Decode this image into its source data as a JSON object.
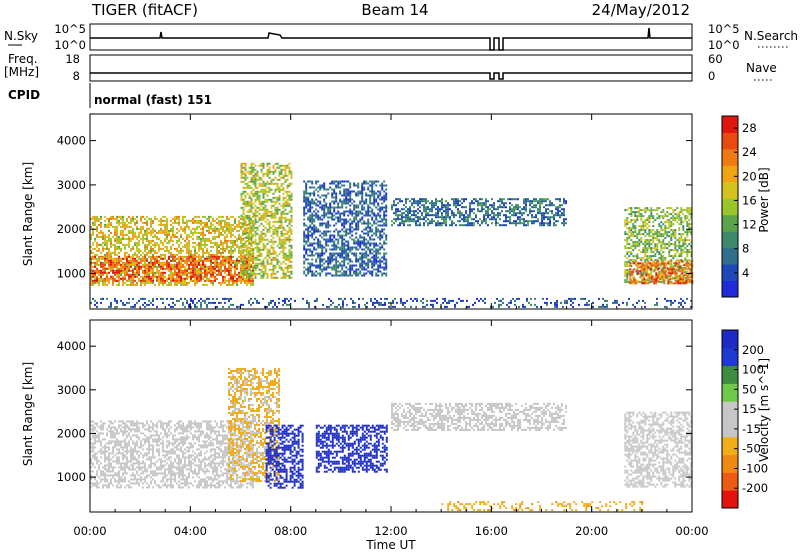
{
  "header": {
    "radar": "TIGER (fitACF)",
    "beam": "Beam 14",
    "date": "24/May/2012"
  },
  "top_panels": {
    "nsky_label": "N.Sky",
    "nsky_ticks": [
      "10^5",
      "10^0"
    ],
    "nsearch_label": "N.Search",
    "nsearch_ticks": [
      "10^5",
      "10^0"
    ],
    "freq_label": "Freq.",
    "freq_unit": "[MHz]",
    "freq_ticks": [
      "18",
      "8"
    ],
    "nave_label": "Nave",
    "nave_ticks": [
      "60",
      "0"
    ],
    "cpid_label": "CPID",
    "cpid_value": "normal (fast) 151"
  },
  "colors": {
    "power_scale": [
      "#1f2bd6",
      "#1f48b8",
      "#2f6f8c",
      "#3d8a6b",
      "#5aa548",
      "#9cc52c",
      "#d6c21f",
      "#f0a415",
      "#f07a12",
      "#e84a10",
      "#e0170f"
    ],
    "velocity_scale": [
      "#e2130d",
      "#ed5a12",
      "#f08a14",
      "#f2ad1a",
      "#c7c7c7",
      "#c7c7c7",
      "#6ec84a",
      "#3e8c42",
      "#1f3ad0",
      "#1c2bc4"
    ]
  },
  "chart_data": [
    {
      "type": "heatmap",
      "title": "",
      "xlabel": "Time UT",
      "ylabel": "Slant Range [km]",
      "xlim": [
        "00:00",
        "24:00"
      ],
      "ylim": [
        200,
        4600
      ],
      "x_ticks": [
        "00:00",
        "04:00",
        "08:00",
        "12:00",
        "16:00",
        "20:00",
        "00:00"
      ],
      "y_ticks": [
        1000,
        2000,
        3000,
        4000
      ],
      "colorbar_label": "Power [dB]",
      "colorbar_ticks": [
        4,
        8,
        12,
        16,
        20,
        24,
        28
      ],
      "colorbar_range": [
        0,
        30
      ],
      "regions": [
        {
          "t0": 0.0,
          "t1": 6.5,
          "r0": 750,
          "r1": 2300,
          "level": 18
        },
        {
          "t0": 0.0,
          "t1": 6.5,
          "r0": 850,
          "r1": 1400,
          "level": 25
        },
        {
          "t0": 6.0,
          "t1": 8.0,
          "r0": 900,
          "r1": 3500,
          "level": 16
        },
        {
          "t0": 8.5,
          "t1": 11.8,
          "r0": 950,
          "r1": 3100,
          "level": 6
        },
        {
          "t0": 12.0,
          "t1": 19.0,
          "r0": 2100,
          "r1": 2700,
          "level": 7
        },
        {
          "t0": 21.3,
          "t1": 24.0,
          "r0": 800,
          "r1": 2500,
          "level": 14
        },
        {
          "t0": 21.5,
          "t1": 24.0,
          "r0": 800,
          "r1": 1300,
          "level": 24
        },
        {
          "t0": 0.0,
          "t1": 24.0,
          "r0": 250,
          "r1": 450,
          "level": 5
        }
      ]
    },
    {
      "type": "heatmap",
      "title": "",
      "xlabel": "Time UT",
      "ylabel": "Slant Range [km]",
      "xlim": [
        "00:00",
        "24:00"
      ],
      "ylim": [
        200,
        4600
      ],
      "x_ticks": [
        "00:00",
        "04:00",
        "08:00",
        "12:00",
        "16:00",
        "20:00",
        "00:00"
      ],
      "y_ticks": [
        1000,
        2000,
        3000,
        4000
      ],
      "colorbar_label": "Velocity [m s^-1]",
      "colorbar_ticks": [
        -200,
        -100,
        -50,
        -15,
        15,
        50,
        100,
        200
      ],
      "colorbar_range": [
        -250,
        250
      ],
      "regions": [
        {
          "t0": 0.0,
          "t1": 6.5,
          "r0": 750,
          "r1": 2300,
          "level": 0
        },
        {
          "t0": 5.5,
          "t1": 7.5,
          "r0": 900,
          "r1": 3500,
          "level": -60
        },
        {
          "t0": 7.0,
          "t1": 8.5,
          "r0": 750,
          "r1": 2200,
          "level": 220
        },
        {
          "t0": 9.0,
          "t1": 11.8,
          "r0": 1100,
          "r1": 2200,
          "level": 220
        },
        {
          "t0": 12.0,
          "t1": 19.0,
          "r0": 2100,
          "r1": 2700,
          "level": 0
        },
        {
          "t0": 21.3,
          "t1": 24.0,
          "r0": 800,
          "r1": 2500,
          "level": 5
        },
        {
          "t0": 14.0,
          "t1": 22.0,
          "r0": 250,
          "r1": 450,
          "level": -80
        }
      ]
    }
  ]
}
